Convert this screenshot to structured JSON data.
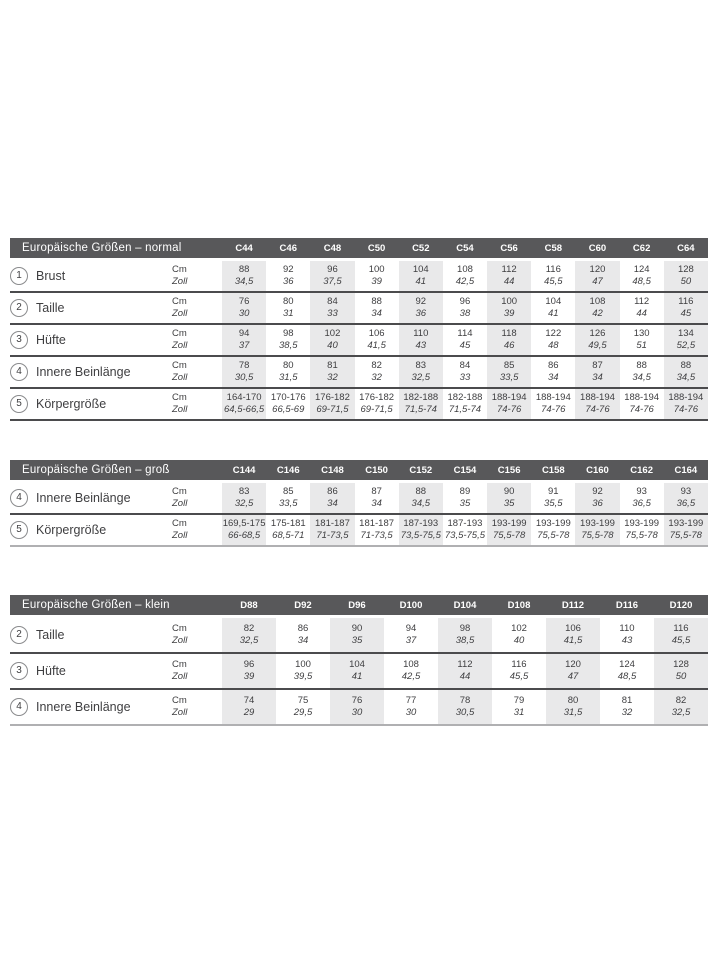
{
  "document": {
    "type": "size-chart",
    "unit_labels": {
      "cm": "Cm",
      "zoll": "Zoll"
    },
    "colors": {
      "header_bar": "#58585a",
      "column_shade": "#e9e9ea",
      "row_line": "#4b4b4d",
      "light_line": "#b0b0b2",
      "text": "#3e3e40"
    }
  },
  "tables": [
    {
      "title": "Europäische Größen – normal",
      "columns": [
        "C44",
        "C46",
        "C48",
        "C50",
        "C52",
        "C54",
        "C56",
        "C58",
        "C60",
        "C62",
        "C64"
      ],
      "rows": [
        {
          "num": "1",
          "label": "Brust",
          "cm": [
            "88",
            "92",
            "96",
            "100",
            "104",
            "108",
            "112",
            "116",
            "120",
            "124",
            "128"
          ],
          "zoll": [
            "34,5",
            "36",
            "37,5",
            "39",
            "41",
            "42,5",
            "44",
            "45,5",
            "47",
            "48,5",
            "50"
          ]
        },
        {
          "num": "2",
          "label": "Taille",
          "cm": [
            "76",
            "80",
            "84",
            "88",
            "92",
            "96",
            "100",
            "104",
            "108",
            "112",
            "116"
          ],
          "zoll": [
            "30",
            "31",
            "33",
            "34",
            "36",
            "38",
            "39",
            "41",
            "42",
            "44",
            "45"
          ]
        },
        {
          "num": "3",
          "label": "Hüfte",
          "cm": [
            "94",
            "98",
            "102",
            "106",
            "110",
            "114",
            "118",
            "122",
            "126",
            "130",
            "134"
          ],
          "zoll": [
            "37",
            "38,5",
            "40",
            "41,5",
            "43",
            "45",
            "46",
            "48",
            "49,5",
            "51",
            "52,5"
          ]
        },
        {
          "num": "4",
          "label": "Innere Beinlänge",
          "cm": [
            "78",
            "80",
            "81",
            "82",
            "83",
            "84",
            "85",
            "86",
            "87",
            "88",
            "88"
          ],
          "zoll": [
            "30,5",
            "31,5",
            "32",
            "32",
            "32,5",
            "33",
            "33,5",
            "34",
            "34",
            "34,5",
            "34,5"
          ]
        },
        {
          "num": "5",
          "label": "Körpergröße",
          "cm": [
            "164-170",
            "170-176",
            "176-182",
            "176-182",
            "182-188",
            "182-188",
            "188-194",
            "188-194",
            "188-194",
            "188-194",
            "188-194"
          ],
          "zoll": [
            "64,5-66,5",
            "66,5-69",
            "69-71,5",
            "69-71,5",
            "71,5-74",
            "71,5-74",
            "74-76",
            "74-76",
            "74-76",
            "74-76",
            "74-76"
          ]
        }
      ]
    },
    {
      "title": "Europäische Größen – groß",
      "columns": [
        "C144",
        "C146",
        "C148",
        "C150",
        "C152",
        "C154",
        "C156",
        "C158",
        "C160",
        "C162",
        "C164"
      ],
      "rows": [
        {
          "num": "4",
          "label": "Innere Beinlänge",
          "cm": [
            "83",
            "85",
            "86",
            "87",
            "88",
            "89",
            "90",
            "91",
            "92",
            "93",
            "93"
          ],
          "zoll": [
            "32,5",
            "33,5",
            "34",
            "34",
            "34,5",
            "35",
            "35",
            "35,5",
            "36",
            "36,5",
            "36,5"
          ]
        },
        {
          "num": "5",
          "label": "Körpergröße",
          "cm": [
            "169,5-175",
            "175-181",
            "181-187",
            "181-187",
            "187-193",
            "187-193",
            "193-199",
            "193-199",
            "193-199",
            "193-199",
            "193-199"
          ],
          "zoll": [
            "66-68,5",
            "68,5-71",
            "71-73,5",
            "71-73,5",
            "73,5-75,5",
            "73,5-75,5",
            "75,5-78",
            "75,5-78",
            "75,5-78",
            "75,5-78",
            "75,5-78"
          ]
        }
      ]
    },
    {
      "title": "Europäische Größen – klein",
      "columns": [
        "D88",
        "D92",
        "D96",
        "D100",
        "D104",
        "D108",
        "D112",
        "D116",
        "D120"
      ],
      "rows": [
        {
          "num": "2",
          "label": "Taille",
          "cm": [
            "82",
            "86",
            "90",
            "94",
            "98",
            "102",
            "106",
            "110",
            "116"
          ],
          "zoll": [
            "32,5",
            "34",
            "35",
            "37",
            "38,5",
            "40",
            "41,5",
            "43",
            "45,5"
          ]
        },
        {
          "num": "3",
          "label": "Hüfte",
          "cm": [
            "96",
            "100",
            "104",
            "108",
            "112",
            "116",
            "120",
            "124",
            "128"
          ],
          "zoll": [
            "39",
            "39,5",
            "41",
            "42,5",
            "44",
            "45,5",
            "47",
            "48,5",
            "50"
          ]
        },
        {
          "num": "4",
          "label": "Innere Beinlänge",
          "cm": [
            "74",
            "75",
            "76",
            "77",
            "78",
            "79",
            "80",
            "81",
            "82"
          ],
          "zoll": [
            "29",
            "29,5",
            "30",
            "30",
            "30,5",
            "31",
            "31,5",
            "32",
            "32,5"
          ]
        }
      ]
    }
  ]
}
